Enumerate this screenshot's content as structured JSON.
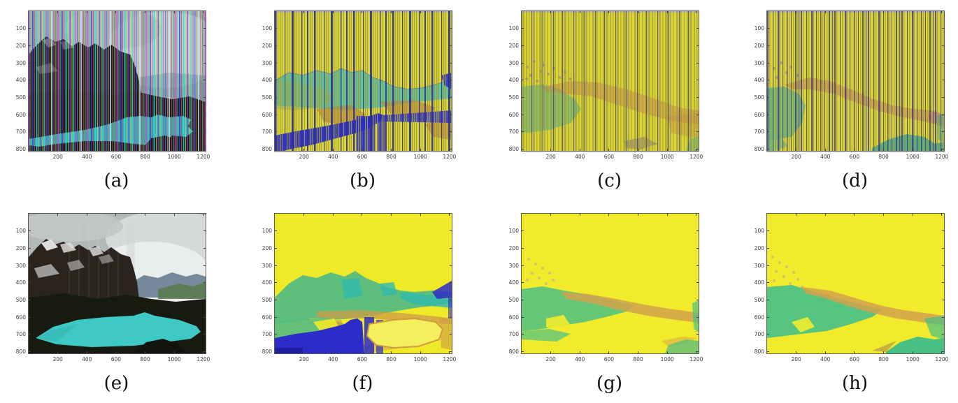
{
  "figure": {
    "type": "subfigure-grid",
    "rows": 2,
    "cols": 4,
    "subfigures": [
      {
        "id": "a",
        "label": "(a)"
      },
      {
        "id": "b",
        "label": "(b)"
      },
      {
        "id": "c",
        "label": "(c)"
      },
      {
        "id": "d",
        "label": "(d)"
      },
      {
        "id": "e",
        "label": "(e)"
      },
      {
        "id": "f",
        "label": "(f)"
      },
      {
        "id": "g",
        "label": "(g)"
      },
      {
        "id": "h",
        "label": "(h)"
      }
    ],
    "axes": {
      "y_ticks": [
        "100",
        "200",
        "300",
        "400",
        "500",
        "600",
        "700",
        "800"
      ],
      "x_ticks": [
        "200",
        "400",
        "600",
        "800",
        "1000",
        "1200"
      ],
      "y_max": 810,
      "x_max": 1215
    },
    "palette": {
      "paper_background": "#ffffff",
      "tick_text": "#3c3c3c",
      "axis_frame": "#5a5a5a",
      "caption_text": "#111111",
      "yellow_base": "#ddd631",
      "bright_yellow": "#f0e928",
      "navy_stripe": "#31318e",
      "olive_stripe": "#97973f",
      "teal_mountain": "#46bdb2",
      "green_terrain": "#4cc184",
      "orange_terrain": "#d3a14b",
      "royal_blue_lake": "#2c2cc8",
      "photo_sky_gray": "#b3b8b9",
      "photo_mountain_brown": "#2b241e",
      "photo_forest_dark": "#171a10",
      "photo_lake_turquoise": "#3ec9c6",
      "stripe_magenta": "#ec3fec",
      "stripe_cyan": "#39d6e0",
      "stripe_green": "#39e04a",
      "stripe_red": "#e83939",
      "stripe_blue": "#3939e8"
    }
  }
}
